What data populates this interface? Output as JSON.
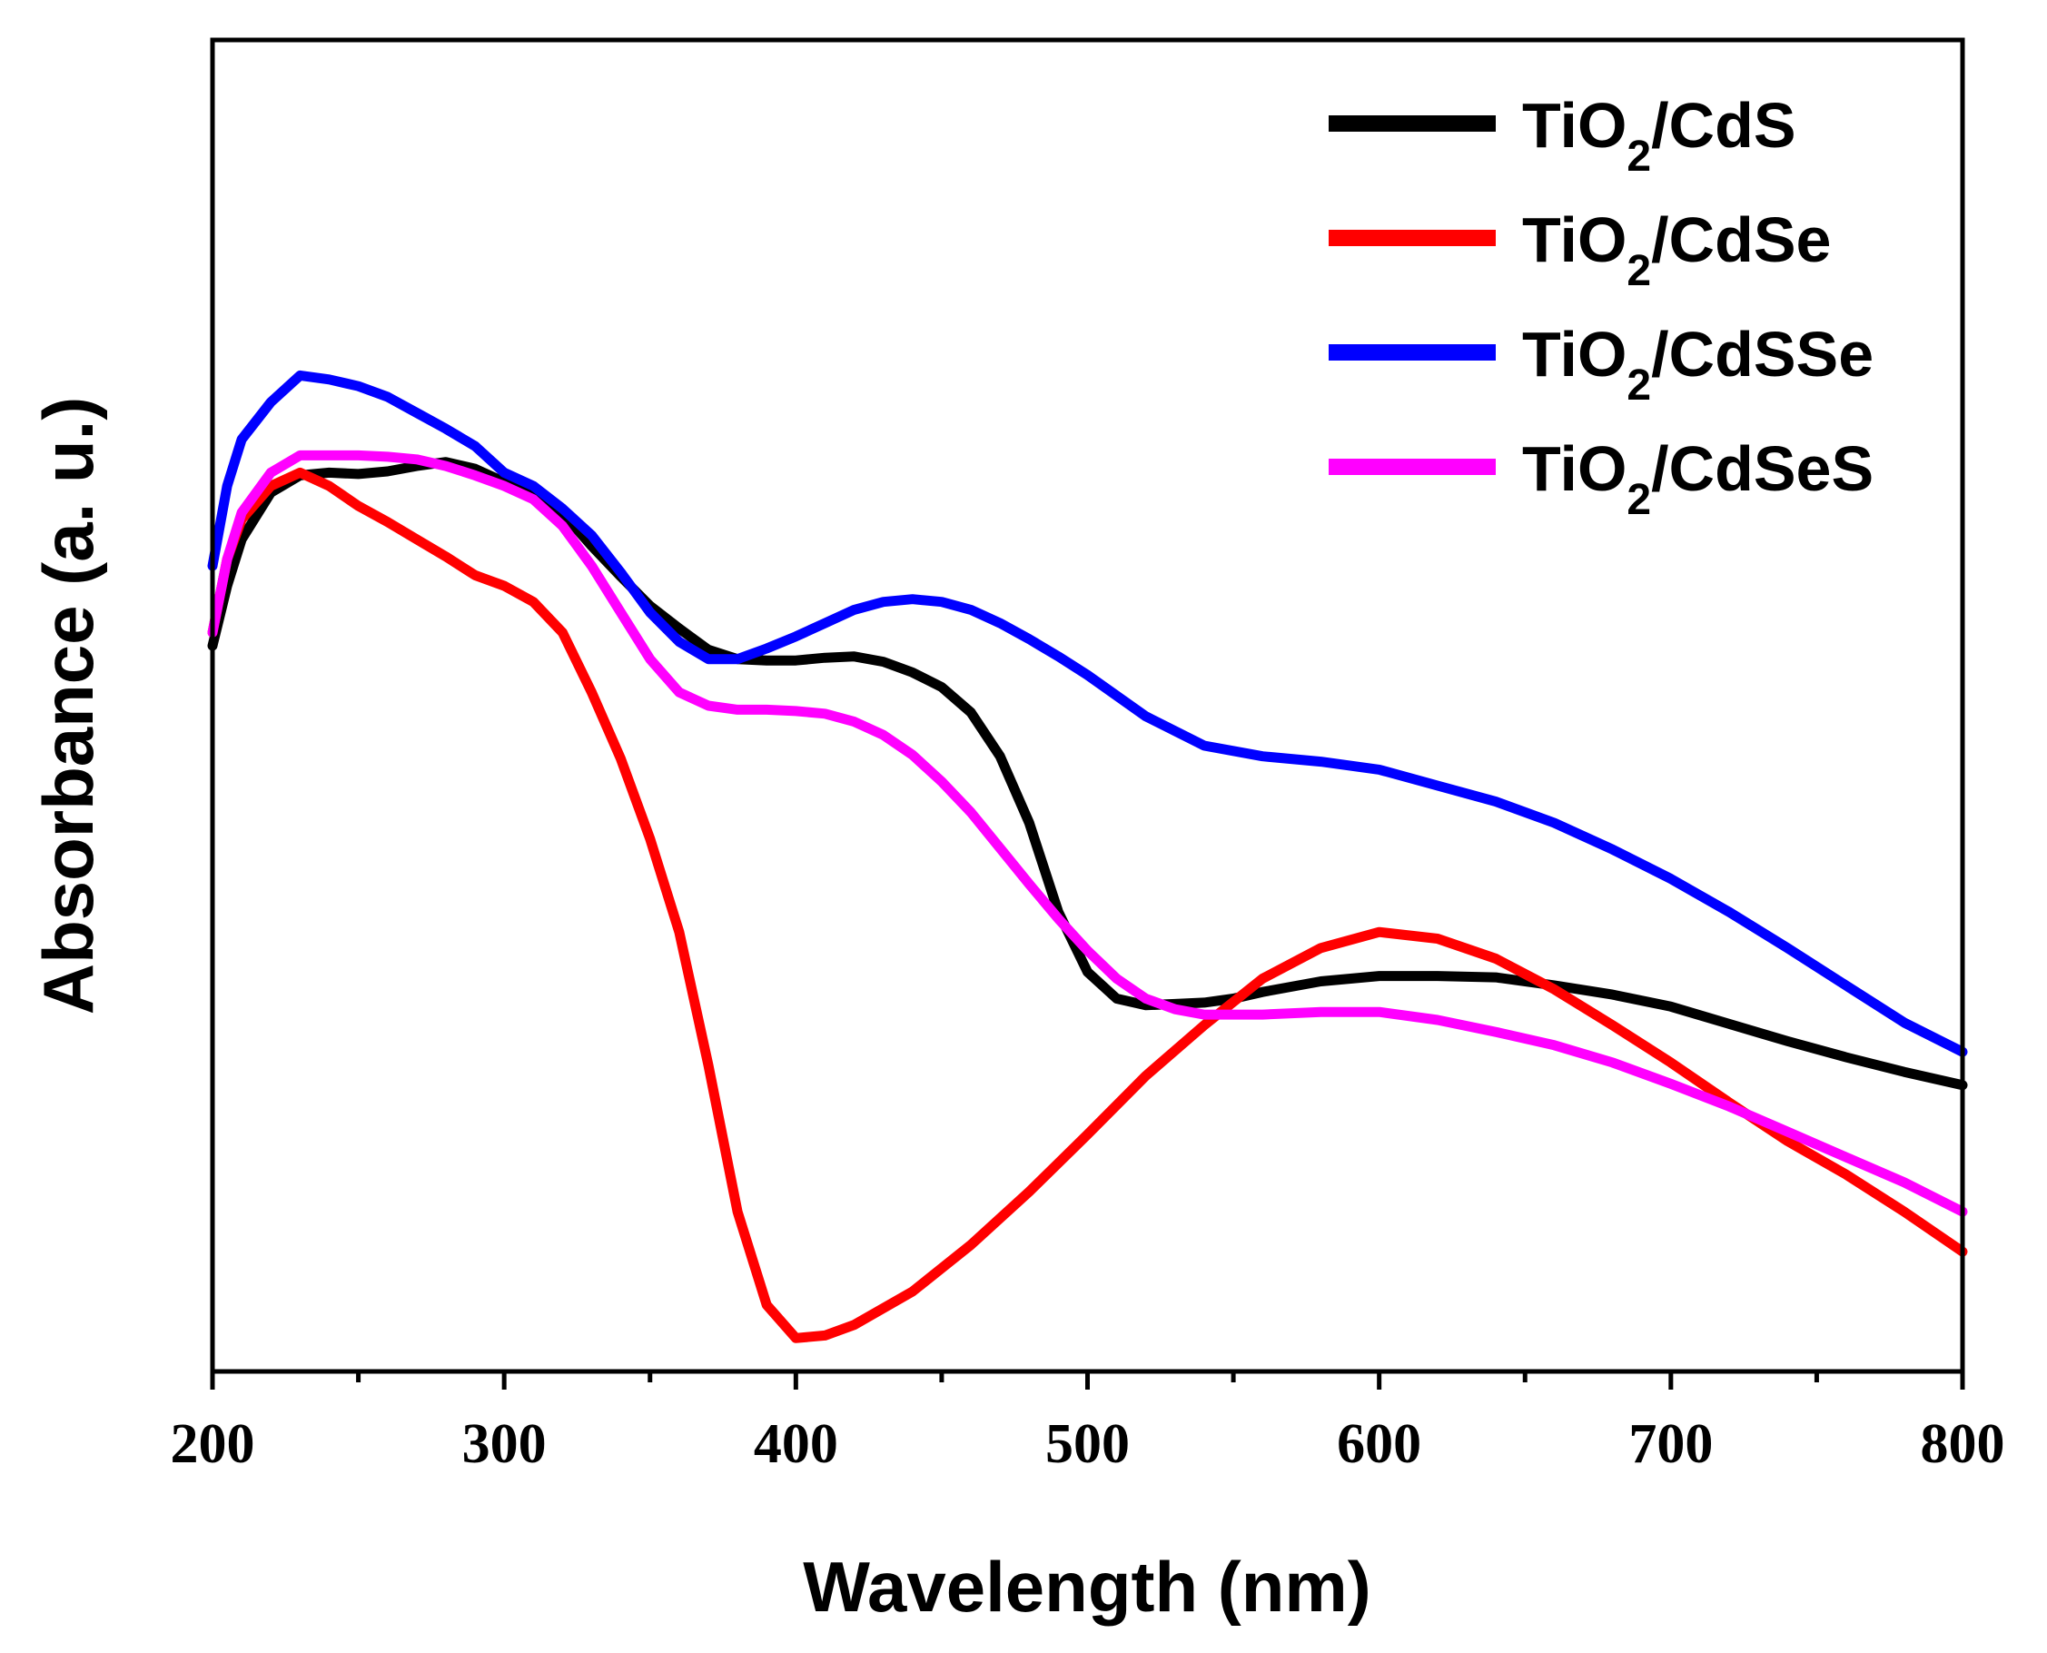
{
  "chart_data": {
    "type": "line",
    "title": "",
    "xlabel": "Wavelength (nm)",
    "ylabel": "Absorbance (a. u.)",
    "xlim": [
      200,
      800
    ],
    "ylim": [
      0,
      1
    ],
    "y_ticks_labeled": false,
    "grid": false,
    "legend_position": "top-right",
    "x_ticks": [
      {
        "value": 200,
        "label": "200"
      },
      {
        "value": 300,
        "label": "300"
      },
      {
        "value": 400,
        "label": "400"
      },
      {
        "value": 500,
        "label": "500"
      },
      {
        "value": 600,
        "label": "600"
      },
      {
        "value": 700,
        "label": "700"
      },
      {
        "value": 800,
        "label": "800"
      }
    ],
    "x_minor_ticks": [
      250,
      350,
      450,
      550,
      650,
      750
    ],
    "series": [
      {
        "name": "TiO2/CdS",
        "label_main": "TiO",
        "label_sub": "2",
        "label_rest": "/CdS",
        "color": "#000000",
        "x": [
          200,
          205,
          210,
          220,
          230,
          240,
          250,
          260,
          270,
          280,
          290,
          300,
          310,
          320,
          330,
          340,
          350,
          360,
          370,
          380,
          390,
          400,
          410,
          420,
          430,
          440,
          450,
          460,
          470,
          480,
          490,
          500,
          510,
          520,
          530,
          540,
          550,
          560,
          580,
          600,
          620,
          640,
          660,
          680,
          700,
          720,
          740,
          760,
          780,
          800
        ],
        "values": [
          0.545,
          0.59,
          0.625,
          0.66,
          0.673,
          0.675,
          0.674,
          0.676,
          0.68,
          0.683,
          0.678,
          0.668,
          0.662,
          0.645,
          0.62,
          0.597,
          0.575,
          0.558,
          0.542,
          0.535,
          0.534,
          0.534,
          0.536,
          0.537,
          0.533,
          0.525,
          0.514,
          0.495,
          0.462,
          0.412,
          0.345,
          0.3,
          0.28,
          0.275,
          0.276,
          0.277,
          0.28,
          0.285,
          0.293,
          0.297,
          0.297,
          0.296,
          0.29,
          0.283,
          0.274,
          0.261,
          0.248,
          0.236,
          0.225,
          0.215
        ]
      },
      {
        "name": "TiO2/CdSe",
        "label_main": "TiO",
        "label_sub": "2",
        "label_rest": "/CdSe",
        "color": "#ff0000",
        "x": [
          200,
          205,
          210,
          220,
          230,
          240,
          250,
          260,
          270,
          280,
          290,
          300,
          310,
          320,
          330,
          340,
          350,
          360,
          370,
          380,
          390,
          400,
          410,
          420,
          440,
          460,
          480,
          500,
          520,
          540,
          560,
          580,
          600,
          620,
          640,
          660,
          680,
          700,
          720,
          740,
          760,
          780,
          800
        ],
        "values": [
          0.555,
          0.61,
          0.64,
          0.665,
          0.675,
          0.665,
          0.65,
          0.638,
          0.625,
          0.612,
          0.598,
          0.59,
          0.578,
          0.555,
          0.51,
          0.46,
          0.4,
          0.33,
          0.23,
          0.12,
          0.05,
          0.025,
          0.027,
          0.035,
          0.06,
          0.095,
          0.135,
          0.178,
          0.222,
          0.26,
          0.295,
          0.318,
          0.33,
          0.325,
          0.31,
          0.287,
          0.26,
          0.232,
          0.202,
          0.173,
          0.148,
          0.12,
          0.09
        ]
      },
      {
        "name": "TiO2/CdSSe",
        "label_main": "TiO",
        "label_sub": "2",
        "label_rest": "/CdSSe",
        "color": "#0000ff",
        "x": [
          200,
          205,
          210,
          220,
          230,
          240,
          250,
          260,
          270,
          280,
          290,
          300,
          310,
          320,
          330,
          340,
          350,
          360,
          370,
          380,
          390,
          400,
          410,
          420,
          430,
          440,
          450,
          460,
          470,
          480,
          490,
          500,
          520,
          540,
          560,
          580,
          600,
          620,
          640,
          660,
          680,
          700,
          720,
          740,
          760,
          780,
          800
        ],
        "values": [
          0.605,
          0.665,
          0.7,
          0.728,
          0.748,
          0.745,
          0.74,
          0.732,
          0.72,
          0.708,
          0.695,
          0.675,
          0.665,
          0.648,
          0.628,
          0.6,
          0.57,
          0.548,
          0.535,
          0.535,
          0.543,
          0.552,
          0.562,
          0.572,
          0.578,
          0.58,
          0.578,
          0.572,
          0.562,
          0.55,
          0.537,
          0.523,
          0.492,
          0.47,
          0.462,
          0.458,
          0.452,
          0.44,
          0.428,
          0.412,
          0.392,
          0.37,
          0.345,
          0.318,
          0.29,
          0.262,
          0.24
        ]
      },
      {
        "name": "TiO2/CdSeS",
        "label_main": "TiO",
        "label_sub": "2",
        "label_rest": "/CdSeS",
        "color": "#ff00ff",
        "x": [
          200,
          205,
          210,
          220,
          230,
          240,
          250,
          260,
          270,
          280,
          290,
          300,
          310,
          320,
          330,
          340,
          350,
          360,
          370,
          380,
          390,
          400,
          410,
          420,
          430,
          440,
          450,
          460,
          470,
          480,
          490,
          500,
          510,
          520,
          530,
          540,
          560,
          580,
          600,
          620,
          640,
          660,
          680,
          700,
          720,
          740,
          760,
          780,
          800
        ],
        "values": [
          0.555,
          0.61,
          0.645,
          0.675,
          0.688,
          0.688,
          0.688,
          0.687,
          0.685,
          0.68,
          0.673,
          0.665,
          0.655,
          0.635,
          0.605,
          0.57,
          0.535,
          0.51,
          0.5,
          0.497,
          0.497,
          0.496,
          0.494,
          0.488,
          0.478,
          0.463,
          0.443,
          0.42,
          0.393,
          0.366,
          0.34,
          0.316,
          0.295,
          0.28,
          0.272,
          0.268,
          0.268,
          0.27,
          0.27,
          0.264,
          0.255,
          0.245,
          0.232,
          0.216,
          0.199,
          0.18,
          0.161,
          0.142,
          0.12
        ]
      }
    ]
  }
}
